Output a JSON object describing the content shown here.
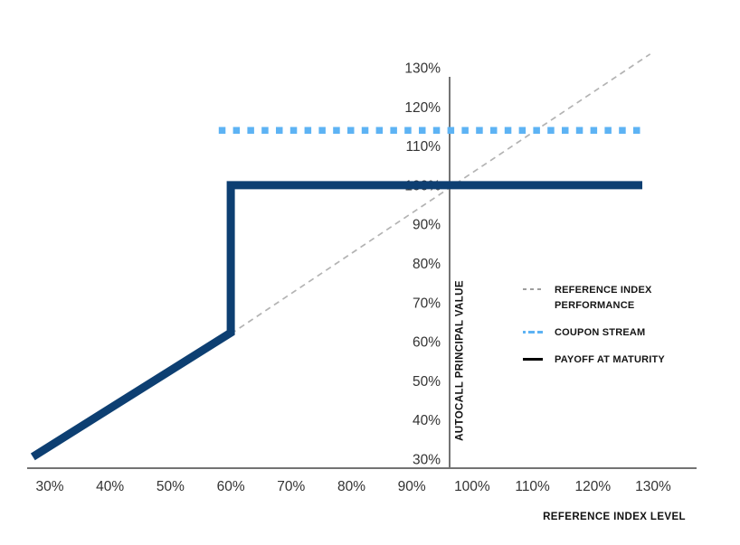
{
  "chart_data": {
    "type": "line",
    "title": "",
    "xlabel": "REFERENCE INDEX LEVEL",
    "ylabel": "AUTOCALL PRINCIPAL VALUE",
    "x_ticks": [
      {
        "value": 30,
        "label": "30%"
      },
      {
        "value": 40,
        "label": "40%"
      },
      {
        "value": 50,
        "label": "50%"
      },
      {
        "value": 60,
        "label": "60%"
      },
      {
        "value": 70,
        "label": "70%"
      },
      {
        "value": 80,
        "label": "80%"
      },
      {
        "value": 90,
        "label": "90%"
      },
      {
        "value": 100,
        "label": "100%"
      },
      {
        "value": 110,
        "label": "110%"
      },
      {
        "value": 120,
        "label": "120%"
      },
      {
        "value": 130,
        "label": "130%"
      }
    ],
    "y_ticks": [
      {
        "value": 30,
        "label": "30%"
      },
      {
        "value": 40,
        "label": "40%"
      },
      {
        "value": 50,
        "label": "50%"
      },
      {
        "value": 60,
        "label": "60%"
      },
      {
        "value": 70,
        "label": "70%"
      },
      {
        "value": 80,
        "label": "80%"
      },
      {
        "value": 90,
        "label": "90%"
      },
      {
        "value": 100,
        "label": "100%"
      },
      {
        "value": 110,
        "label": "110%"
      },
      {
        "value": 120,
        "label": "120%"
      },
      {
        "value": 130,
        "label": "130%"
      }
    ],
    "xlim": [
      26,
      136
    ],
    "ylim": [
      28,
      134
    ],
    "grid": false,
    "legend_position": "right-middle",
    "series": [
      {
        "name": "REFERENCE INDEX PERFORMANCE",
        "style": "dashed",
        "color": "#b3b3b3",
        "points": [
          [
            60,
            62
          ],
          [
            129.5,
            133.5
          ]
        ]
      },
      {
        "name": "COUPON STREAM",
        "style": "square-dotted",
        "color": "#5db3f4",
        "points": [
          [
            58,
            114
          ],
          [
            128.2,
            114
          ]
        ]
      },
      {
        "name": "PAYOFF AT MATURITY",
        "style": "solid",
        "color": "#0d3f72",
        "points": [
          [
            27.2,
            30.6
          ],
          [
            60,
            62.3
          ],
          [
            60,
            100
          ],
          [
            128.2,
            100
          ]
        ]
      }
    ]
  },
  "legend": {
    "items": [
      {
        "lines": [
          "REFERENCE INDEX",
          "PERFORMANCE"
        ]
      },
      {
        "lines": [
          "COUPON STREAM"
        ]
      },
      {
        "lines": [
          "PAYOFF AT MATURITY"
        ]
      }
    ]
  },
  "colors": {
    "payoff_navy": "#0d3f72",
    "coupon_blue": "#5db3f4",
    "reference_gray": "#b3b3b3",
    "axis_gray": "#737373",
    "tick_text": "#333333",
    "label_text": "#111111"
  }
}
